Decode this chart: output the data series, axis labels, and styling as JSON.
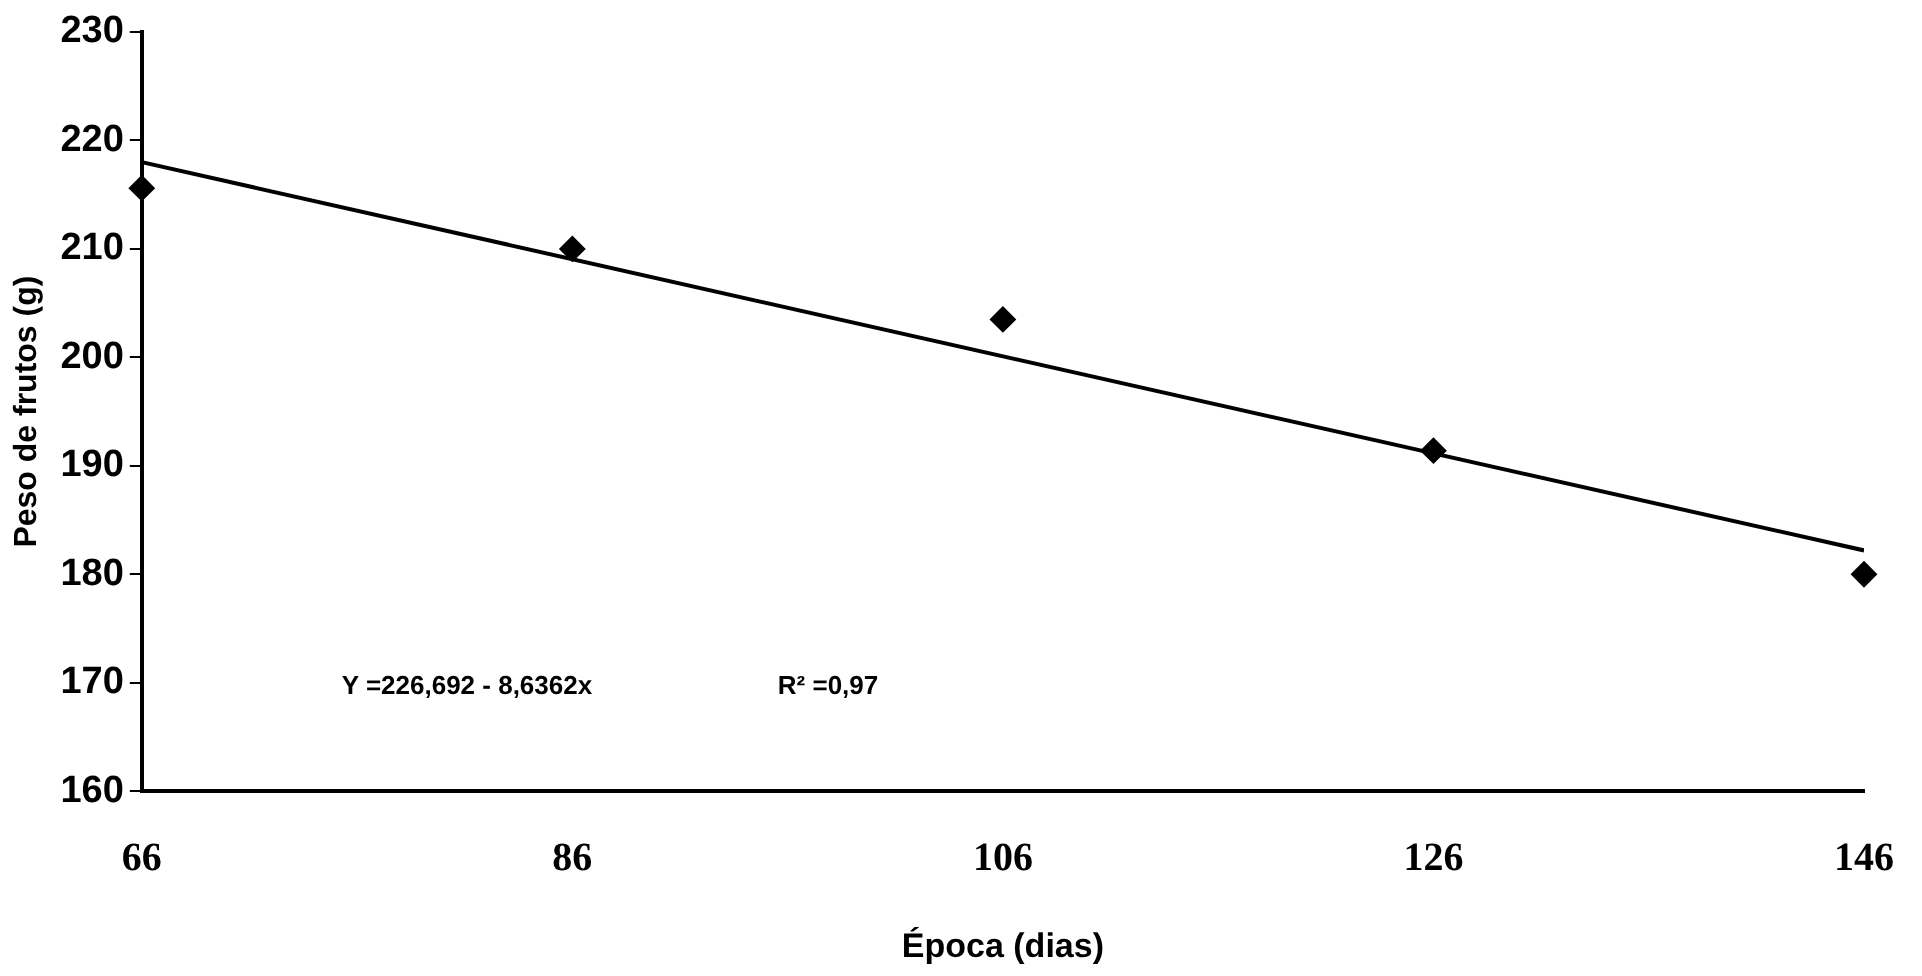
{
  "chart_data": {
    "type": "scatter",
    "xlabel": "Época (dias)",
    "ylabel": "Peso de frutos (g)",
    "x": [
      66,
      86,
      106,
      126,
      146
    ],
    "xlim": [
      66,
      146
    ],
    "xticks": [
      66,
      86,
      106,
      126,
      146
    ],
    "ylim": [
      160,
      230
    ],
    "yticks": [
      160,
      170,
      180,
      190,
      200,
      210,
      220,
      230
    ],
    "grid": false,
    "legend": false,
    "series": [
      {
        "color": "#000000",
        "marker": "diamond",
        "values": [
          215.6,
          210,
          203.5,
          191.4,
          180
        ]
      },
      {
        "type": "line",
        "color": "#000000",
        "marker": "none",
        "x": [
          66,
          146
        ],
        "values": [
          218,
          182.2
        ]
      }
    ],
    "annotations": [
      "Y =226,692 - 8,6362x",
      "R² =0,97"
    ]
  }
}
